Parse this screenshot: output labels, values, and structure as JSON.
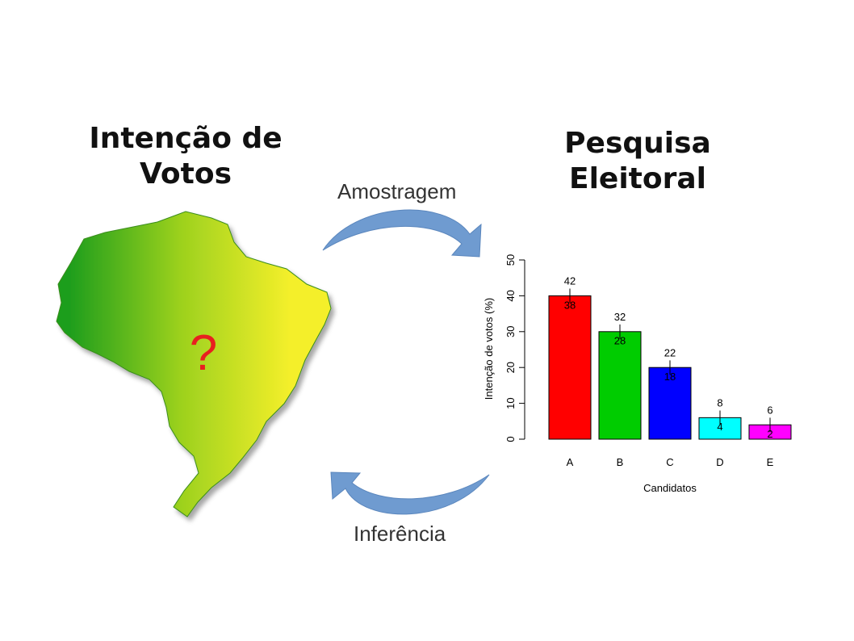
{
  "left_title": {
    "line1": "Intenção de",
    "line2": "Votos"
  },
  "right_title": {
    "line1": "Pesquisa",
    "line2": "Eleitoral"
  },
  "top_arrow_label": "Amostragem",
  "bottom_arrow_label": "Inferência",
  "map": {
    "question_mark": "?",
    "question_color": "#e8201f",
    "gradient": [
      "#1f9e1a",
      "#f4ef2a"
    ]
  },
  "arrow_color": "#6f9bd0",
  "chart_data": {
    "type": "bar",
    "categories": [
      "A",
      "B",
      "C",
      "D",
      "E"
    ],
    "values": [
      40,
      30,
      20,
      6,
      4
    ],
    "upper": [
      42,
      32,
      22,
      8,
      6
    ],
    "lower": [
      38,
      28,
      18,
      4,
      2
    ],
    "colors": [
      "#ff0000",
      "#00cc00",
      "#0000ff",
      "#00ffff",
      "#ff00ff"
    ],
    "xlabel": "Candidatos",
    "ylabel": "Intenção de votos (%)",
    "yticks": [
      0,
      10,
      20,
      30,
      40,
      50
    ],
    "ylim": [
      0,
      50
    ]
  }
}
